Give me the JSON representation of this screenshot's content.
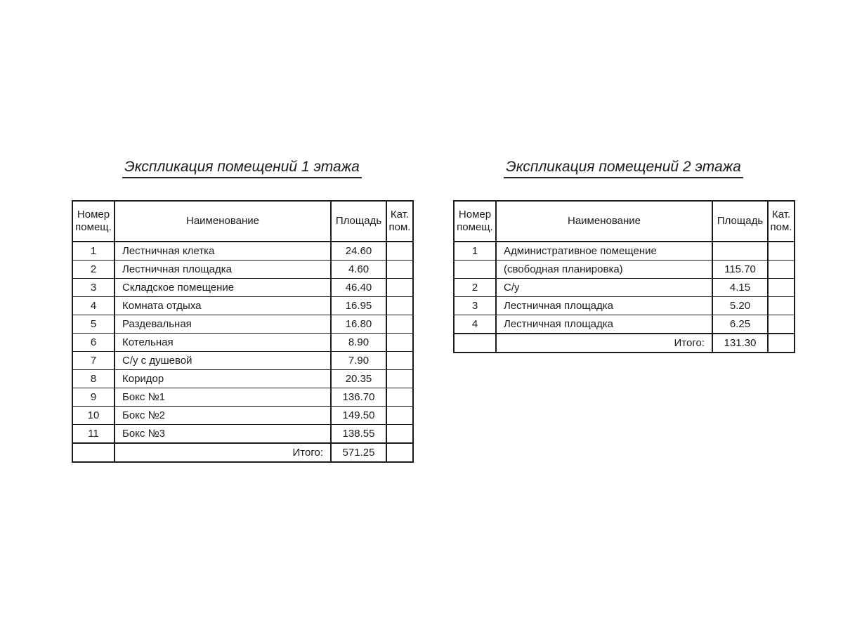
{
  "page": {
    "background_color": "#ffffff",
    "text_color": "#1b1b1b",
    "border_color": "#1b1b1b"
  },
  "tables": [
    {
      "title": "Экспликация помещений 1 этажа",
      "headers": {
        "number_line1": "Номер",
        "number_line2": "помещ.",
        "name": "Наименование",
        "area": "Площадь",
        "cat_line1": "Кат.",
        "cat_line2": "пом."
      },
      "rows": [
        {
          "num": "1",
          "name": "Лестничная клетка",
          "area": "24.60",
          "cat": ""
        },
        {
          "num": "2",
          "name": "Лестничная площадка",
          "area": "4.60",
          "cat": ""
        },
        {
          "num": "3",
          "name": "Складское помещение",
          "area": "46.40",
          "cat": ""
        },
        {
          "num": "4",
          "name": "Комната отдыха",
          "area": "16.95",
          "cat": ""
        },
        {
          "num": "5",
          "name": "Раздевальная",
          "area": "16.80",
          "cat": ""
        },
        {
          "num": "6",
          "name": "Котельная",
          "area": "8.90",
          "cat": ""
        },
        {
          "num": "7",
          "name": "С/у с душевой",
          "area": "7.90",
          "cat": ""
        },
        {
          "num": "8",
          "name": "Коридор",
          "area": "20.35",
          "cat": ""
        },
        {
          "num": "9",
          "name": "Бокс №1",
          "area": "136.70",
          "cat": ""
        },
        {
          "num": "10",
          "name": "Бокс №2",
          "area": "149.50",
          "cat": ""
        },
        {
          "num": "11",
          "name": "Бокс №3",
          "area": "138.55",
          "cat": ""
        }
      ],
      "total_label": "Итого:",
      "total_value": "571.25"
    },
    {
      "title": "Экспликация помещений 2 этажа",
      "headers": {
        "number_line1": "Номер",
        "number_line2": "помещ.",
        "name": "Наименование",
        "area": "Площадь",
        "cat_line1": "Кат.",
        "cat_line2": "пом."
      },
      "rows": [
        {
          "num": "1",
          "name": "Административное помещение",
          "area": "",
          "cat": ""
        },
        {
          "num": "",
          "name": "(свободная планировка)",
          "area": "115.70",
          "cat": ""
        },
        {
          "num": "2",
          "name": "С/у",
          "area": "4.15",
          "cat": ""
        },
        {
          "num": "3",
          "name": "Лестничная площадка",
          "area": "5.20",
          "cat": ""
        },
        {
          "num": "4",
          "name": "Лестничная площадка",
          "area": "6.25",
          "cat": ""
        }
      ],
      "total_label": "Итого:",
      "total_value": "131.30"
    }
  ]
}
